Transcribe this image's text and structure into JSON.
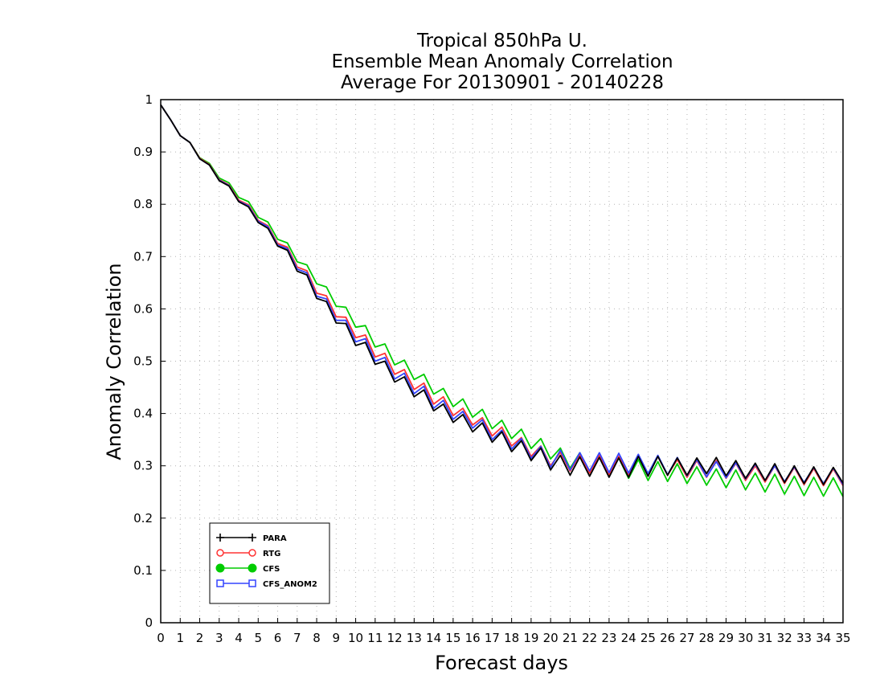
{
  "chart_data": {
    "type": "line",
    "title": [
      "Tropical 850hPa U.",
      "Ensemble Mean Anomaly Correlation",
      "Average For 20130901 - 20140228"
    ],
    "xlabel": "Forecast days",
    "ylabel": "Anomaly Correlation",
    "xlim": [
      0,
      35
    ],
    "ylim": [
      0,
      1
    ],
    "xticks": [
      0,
      1,
      2,
      3,
      4,
      5,
      6,
      7,
      8,
      9,
      10,
      11,
      12,
      13,
      14,
      15,
      16,
      17,
      18,
      19,
      20,
      21,
      22,
      23,
      24,
      25,
      26,
      27,
      28,
      29,
      30,
      31,
      32,
      33,
      34,
      35
    ],
    "yticks": [
      0,
      0.1,
      0.2,
      0.3,
      0.4,
      0.5,
      0.6,
      0.7,
      0.8,
      0.9,
      1
    ],
    "ytick_labels": [
      "0",
      "0.1",
      "0.2",
      "0.3",
      "0.4",
      "0.5",
      "0.6",
      "0.7",
      "0.8",
      "0.9",
      "1"
    ],
    "grid": true,
    "legend_position": "lower-left",
    "x": [
      0,
      0.5,
      1,
      1.5,
      2,
      2.5,
      3,
      3.5,
      4,
      4.5,
      5,
      5.5,
      6,
      6.5,
      7,
      7.5,
      8,
      8.5,
      9,
      9.5,
      10,
      10.5,
      11,
      11.5,
      12,
      12.5,
      13,
      13.5,
      14,
      14.5,
      15,
      15.5,
      16,
      16.5,
      17,
      17.5,
      18,
      18.5,
      19,
      19.5,
      20,
      20.5,
      21,
      21.5,
      22,
      22.5,
      23,
      23.5,
      24,
      24.5,
      25,
      25.5,
      26,
      26.5,
      27,
      27.5,
      28,
      28.5,
      29,
      29.5,
      30,
      30.5,
      31,
      31.5,
      32,
      32.5,
      33,
      33.5,
      34,
      34.5,
      35
    ],
    "series": [
      {
        "name": "PARA",
        "color": "#000000",
        "marker": "plus",
        "values": [
          0.99,
          0.962,
          0.931,
          0.918,
          0.887,
          0.875,
          0.845,
          0.835,
          0.805,
          0.795,
          0.765,
          0.754,
          0.72,
          0.712,
          0.672,
          0.665,
          0.62,
          0.614,
          0.573,
          0.572,
          0.53,
          0.536,
          0.494,
          0.5,
          0.46,
          0.47,
          0.432,
          0.445,
          0.405,
          0.418,
          0.383,
          0.398,
          0.365,
          0.382,
          0.345,
          0.365,
          0.327,
          0.348,
          0.31,
          0.334,
          0.292,
          0.32,
          0.282,
          0.317,
          0.28,
          0.316,
          0.278,
          0.315,
          0.278,
          0.318,
          0.28,
          0.318,
          0.282,
          0.315,
          0.282,
          0.315,
          0.285,
          0.316,
          0.281,
          0.31,
          0.276,
          0.305,
          0.272,
          0.304,
          0.268,
          0.3,
          0.266,
          0.298,
          0.264,
          0.297,
          0.267
        ]
      },
      {
        "name": "RTG",
        "color": "#ff3333",
        "marker": "open-circle",
        "values": [
          0.99,
          0.962,
          0.931,
          0.918,
          0.888,
          0.876,
          0.847,
          0.837,
          0.808,
          0.799,
          0.769,
          0.759,
          0.725,
          0.718,
          0.68,
          0.673,
          0.63,
          0.625,
          0.585,
          0.584,
          0.545,
          0.55,
          0.508,
          0.515,
          0.475,
          0.484,
          0.446,
          0.458,
          0.418,
          0.432,
          0.396,
          0.41,
          0.378,
          0.392,
          0.357,
          0.374,
          0.338,
          0.354,
          0.318,
          0.338,
          0.3,
          0.326,
          0.29,
          0.322,
          0.286,
          0.32,
          0.283,
          0.318,
          0.283,
          0.32,
          0.283,
          0.318,
          0.282,
          0.312,
          0.278,
          0.31,
          0.278,
          0.31,
          0.276,
          0.305,
          0.272,
          0.3,
          0.269,
          0.3,
          0.266,
          0.297,
          0.264,
          0.295,
          0.262,
          0.294,
          0.262
        ]
      },
      {
        "name": "CFS",
        "color": "#00cc00",
        "marker": "filled-circle",
        "values": [
          0.99,
          0.962,
          0.931,
          0.918,
          0.889,
          0.878,
          0.85,
          0.841,
          0.813,
          0.805,
          0.775,
          0.766,
          0.733,
          0.726,
          0.69,
          0.684,
          0.648,
          0.642,
          0.605,
          0.603,
          0.565,
          0.568,
          0.527,
          0.533,
          0.493,
          0.502,
          0.465,
          0.475,
          0.437,
          0.448,
          0.413,
          0.428,
          0.393,
          0.408,
          0.371,
          0.387,
          0.352,
          0.37,
          0.333,
          0.352,
          0.313,
          0.334,
          0.295,
          0.325,
          0.288,
          0.318,
          0.283,
          0.315,
          0.276,
          0.312,
          0.272,
          0.308,
          0.27,
          0.304,
          0.266,
          0.298,
          0.263,
          0.294,
          0.258,
          0.292,
          0.254,
          0.286,
          0.25,
          0.284,
          0.246,
          0.28,
          0.243,
          0.278,
          0.242,
          0.277,
          0.241
        ]
      },
      {
        "name": "CFS_ANOM2",
        "color": "#3344ff",
        "marker": "open-square",
        "values": [
          0.99,
          0.962,
          0.931,
          0.918,
          0.887,
          0.875,
          0.846,
          0.836,
          0.806,
          0.797,
          0.767,
          0.757,
          0.722,
          0.715,
          0.676,
          0.669,
          0.624,
          0.619,
          0.578,
          0.578,
          0.537,
          0.543,
          0.5,
          0.507,
          0.466,
          0.477,
          0.438,
          0.452,
          0.41,
          0.425,
          0.389,
          0.404,
          0.372,
          0.388,
          0.35,
          0.368,
          0.332,
          0.352,
          0.314,
          0.337,
          0.297,
          0.33,
          0.292,
          0.325,
          0.29,
          0.325,
          0.287,
          0.324,
          0.286,
          0.322,
          0.285,
          0.32,
          0.283,
          0.316,
          0.281,
          0.312,
          0.279,
          0.308,
          0.277,
          0.306,
          0.275,
          0.303,
          0.272,
          0.3,
          0.27,
          0.298,
          0.268,
          0.297,
          0.266,
          0.296,
          0.264
        ]
      }
    ]
  }
}
